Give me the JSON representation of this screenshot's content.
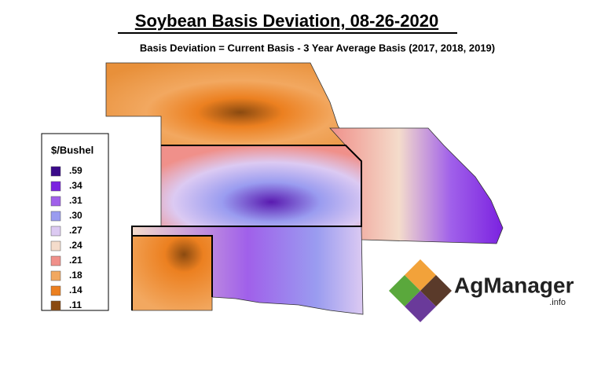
{
  "header": {
    "title": "Soybean Basis Deviation, 08-26-2020",
    "subtitle": "Basis Deviation = Current Basis - 3 Year Average Basis (2017, 2018, 2019)"
  },
  "legend": {
    "title": "$/Bushel",
    "items": [
      {
        "label": ".59",
        "color": "#3a0a8a"
      },
      {
        "label": ".34",
        "color": "#7b22e0"
      },
      {
        "label": ".31",
        "color": "#a060ea"
      },
      {
        "label": ".30",
        "color": "#9a9cf0"
      },
      {
        "label": ".27",
        "color": "#dccaf2"
      },
      {
        "label": ".24",
        "color": "#f4dccb"
      },
      {
        "label": ".21",
        "color": "#f0908a"
      },
      {
        "label": ".18",
        "color": "#f2a860"
      },
      {
        "label": ".14",
        "color": "#ec8020"
      },
      {
        "label": ".11",
        "color": "#8a4a10"
      }
    ]
  },
  "logo": {
    "name": "AgManager",
    "suffix": ".info"
  }
}
